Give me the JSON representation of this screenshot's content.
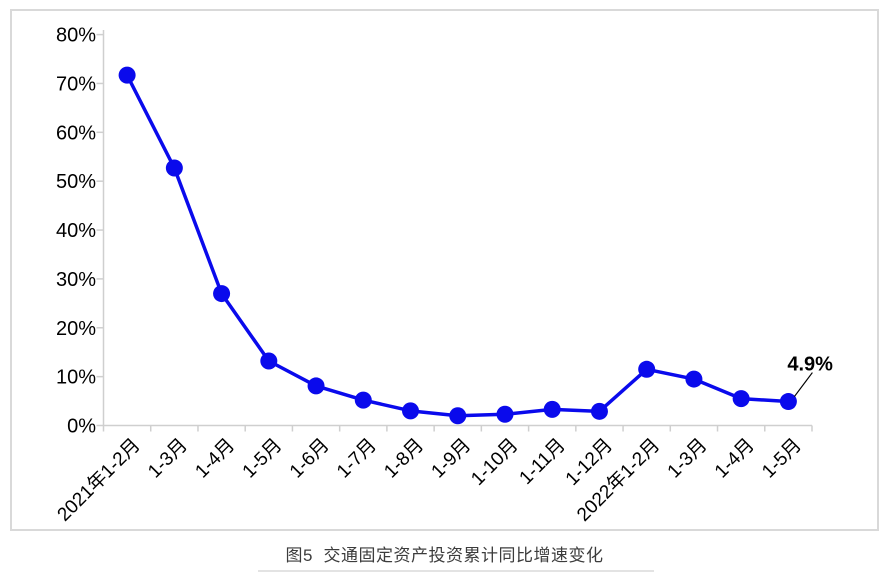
{
  "chart_data": {
    "type": "line",
    "caption": "图5  交通固定资产投资累计同比增速变化",
    "categories": [
      "2021年1-2月",
      "1-3月",
      "1-4月",
      "1-5月",
      "1-6月",
      "1-7月",
      "1-8月",
      "1-9月",
      "1-10月",
      "1-11月",
      "1-12月",
      "2022年1-2月",
      "1-3月",
      "1-4月",
      "1-5月"
    ],
    "values": [
      71.7,
      52.7,
      27.0,
      13.2,
      8.1,
      5.2,
      3.0,
      2.0,
      2.3,
      3.3,
      2.9,
      11.5,
      9.5,
      5.5,
      4.9
    ],
    "ylim": [
      0,
      80
    ],
    "ytick_step": 10,
    "ytick_labels": [
      "0%",
      "10%",
      "20%",
      "30%",
      "40%",
      "50%",
      "60%",
      "70%",
      "80%"
    ],
    "grid": false,
    "legend": "none",
    "marker": "circle",
    "line_color": "#0a0aec",
    "annotation": {
      "text": "4.9%",
      "target_index": 14,
      "color": "#000000"
    }
  }
}
